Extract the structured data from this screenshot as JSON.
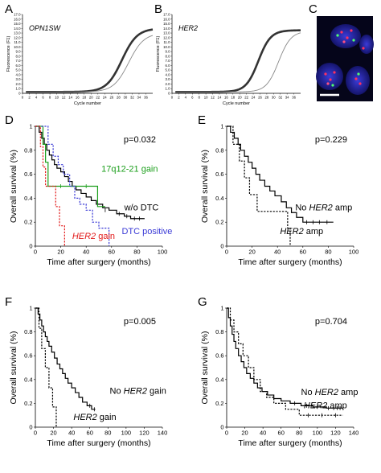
{
  "panels": {
    "A": {
      "letter": "A",
      "gene": "OPN1SW",
      "ylabel": "Fluorescence (F1)",
      "xlabel": "Cycle number",
      "yticks": [
        "0",
        "1.0",
        "2.0",
        "3.0",
        "4.0",
        "5.0",
        "6.0",
        "7.0",
        "8.0",
        "9.0",
        "10.0",
        "11.0",
        "12.0",
        "13.0",
        "14.0",
        "15.0",
        "16.0",
        "17.0"
      ],
      "xticks": [
        "0",
        "2",
        "4",
        "6",
        "8",
        "10",
        "12",
        "14",
        "16",
        "18",
        "20",
        "22",
        "24",
        "26",
        "28",
        "30",
        "32",
        "34",
        "36"
      ]
    },
    "B": {
      "letter": "B",
      "gene": "HER2",
      "ylabel": "Fluorescence (F1)",
      "xlabel": "Cycle number",
      "yticks": [
        "0",
        "1.0",
        "2.0",
        "3.0",
        "4.0",
        "5.0",
        "6.0",
        "7.0",
        "8.0",
        "9.0",
        "10.0",
        "11.0",
        "12.0",
        "13.0",
        "14.0",
        "15.0",
        "16.0",
        "17.0"
      ],
      "xticks": [
        "0",
        "2",
        "4",
        "6",
        "8",
        "10",
        "12",
        "14",
        "16",
        "18",
        "20",
        "22",
        "24",
        "26",
        "28",
        "30",
        "32",
        "34",
        "36"
      ]
    },
    "C": {
      "letter": "C"
    }
  },
  "chart_data": [
    {
      "type": "line",
      "panel": "A",
      "title": "OPN1SW",
      "xlabel": "Cycle number",
      "ylabel": "Fluorescence (F1)",
      "xlim": [
        0,
        38
      ],
      "ylim": [
        0,
        17
      ],
      "series": [
        {
          "style": "thick",
          "midpoint": 29.0,
          "slope": 0.45,
          "base": 0.3,
          "plateau": 14.0
        },
        {
          "style": "thin",
          "midpoint": 31.0,
          "slope": 0.45,
          "base": 0.3,
          "plateau": 13.0
        }
      ]
    },
    {
      "type": "line",
      "panel": "B",
      "title": "HER2",
      "xlabel": "Cycle number",
      "ylabel": "Fluorescence (F1)",
      "xlim": [
        0,
        38
      ],
      "ylim": [
        0,
        17
      ],
      "series": [
        {
          "style": "thick",
          "midpoint": 25.5,
          "slope": 0.55,
          "base": 0.3,
          "plateau": 13.6
        },
        {
          "style": "thin",
          "midpoint": 31.5,
          "slope": 0.55,
          "base": 0.3,
          "plateau": 13.4
        }
      ]
    },
    {
      "type": "line",
      "panel": "D",
      "title": "",
      "xlabel": "Time after surgery (months)",
      "ylabel": "Overall survival (%)",
      "xlim": [
        0,
        100
      ],
      "ylim": [
        0,
        1
      ],
      "xticks": [
        "0",
        "20",
        "40",
        "60",
        "80",
        "100"
      ],
      "yticks": [
        "0",
        "0.2",
        "0.4",
        "0.6",
        "0.8",
        "1"
      ],
      "pvalue": "p=0.032",
      "series": [
        {
          "name": "w/o DTC",
          "color": "#000000",
          "dash": "solid",
          "label_pos": [
            70,
            0.3
          ],
          "points": [
            [
              0,
              1
            ],
            [
              3,
              0.95
            ],
            [
              5,
              0.9
            ],
            [
              7,
              0.85
            ],
            [
              9,
              0.8
            ],
            [
              11,
              0.76
            ],
            [
              13,
              0.72
            ],
            [
              15,
              0.68
            ],
            [
              17,
              0.65
            ],
            [
              20,
              0.62
            ],
            [
              23,
              0.58
            ],
            [
              26,
              0.54
            ],
            [
              29,
              0.5
            ],
            [
              32,
              0.47
            ],
            [
              36,
              0.44
            ],
            [
              40,
              0.41
            ],
            [
              44,
              0.38
            ],
            [
              48,
              0.35
            ],
            [
              53,
              0.32
            ],
            [
              58,
              0.3
            ],
            [
              64,
              0.27
            ],
            [
              70,
              0.25
            ],
            [
              75,
              0.23
            ],
            [
              86,
              0.23
            ]
          ],
          "censored": [
            [
              55,
              0.3
            ],
            [
              66,
              0.27
            ],
            [
              72,
              0.25
            ],
            [
              78,
              0.23
            ],
            [
              82,
              0.23
            ]
          ]
        },
        {
          "name": "17q12-21 gain",
          "color": "#1a9e1a",
          "dash": "solid",
          "label_pos": [
            52,
            0.62
          ],
          "points": [
            [
              0,
              1
            ],
            [
              6,
              0.85
            ],
            [
              8,
              0.7
            ],
            [
              10,
              0.5
            ],
            [
              48,
              0.5
            ],
            [
              49,
              0.33
            ],
            [
              55,
              0.33
            ]
          ],
          "censored": [
            [
              20,
              0.5
            ],
            [
              40,
              0.5
            ]
          ]
        },
        {
          "name": "DTC positive",
          "color": "#3a3ad6",
          "dash": "dotted",
          "label_pos": [
            68,
            0.1
          ],
          "points": [
            [
              0,
              1
            ],
            [
              10,
              0.85
            ],
            [
              14,
              0.75
            ],
            [
              18,
              0.68
            ],
            [
              22,
              0.6
            ],
            [
              27,
              0.5
            ],
            [
              31,
              0.4
            ],
            [
              35,
              0.35
            ],
            [
              40,
              0.3
            ],
            [
              45,
              0.2
            ],
            [
              50,
              0.15
            ],
            [
              58,
              0.15
            ],
            [
              58,
              0
            ]
          ],
          "censored": []
        },
        {
          "name": "HER2 gain",
          "color": "#e21a1a",
          "dash": "dotted",
          "label_pos": [
            29,
            0.06
          ],
          "points": [
            [
              0,
              1
            ],
            [
              4,
              0.83
            ],
            [
              6,
              0.66
            ],
            [
              8,
              0.5
            ],
            [
              13,
              0.5
            ],
            [
              16,
              0.33
            ],
            [
              19,
              0.17
            ],
            [
              23,
              0.17
            ],
            [
              23,
              0
            ]
          ],
          "censored": []
        }
      ]
    },
    {
      "type": "line",
      "panel": "E",
      "title": "",
      "xlabel": "Time after surgery (months)",
      "ylabel": "Overall survival (%)",
      "xlim": [
        0,
        100
      ],
      "ylim": [
        0,
        1
      ],
      "xticks": [
        "0",
        "20",
        "40",
        "60",
        "80",
        "100"
      ],
      "yticks": [
        "0",
        "0.2",
        "0.4",
        "0.6",
        "0.8",
        "1"
      ],
      "pvalue": "p=0.229",
      "series": [
        {
          "name": "No HER2 amp",
          "color": "#000000",
          "dash": "solid",
          "label_pos": [
            54,
            0.3
          ],
          "points": [
            [
              0,
              1
            ],
            [
              3,
              0.95
            ],
            [
              6,
              0.9
            ],
            [
              9,
              0.85
            ],
            [
              11,
              0.8
            ],
            [
              14,
              0.75
            ],
            [
              17,
              0.7
            ],
            [
              20,
              0.65
            ],
            [
              23,
              0.6
            ],
            [
              26,
              0.55
            ],
            [
              30,
              0.5
            ],
            [
              34,
              0.46
            ],
            [
              38,
              0.42
            ],
            [
              43,
              0.37
            ],
            [
              47,
              0.32
            ],
            [
              51,
              0.28
            ],
            [
              55,
              0.24
            ],
            [
              60,
              0.2
            ],
            [
              84,
              0.2
            ]
          ],
          "censored": [
            [
              63,
              0.2
            ],
            [
              68,
              0.2
            ],
            [
              73,
              0.2
            ],
            [
              79,
              0.2
            ]
          ]
        },
        {
          "name": "HER2 amp",
          "color": "#000000",
          "dash": "dotted",
          "label_pos": [
            42,
            0.1
          ],
          "points": [
            [
              0,
              1
            ],
            [
              5,
              0.85
            ],
            [
              10,
              0.71
            ],
            [
              14,
              0.57
            ],
            [
              18,
              0.43
            ],
            [
              24,
              0.29
            ],
            [
              45,
              0.29
            ],
            [
              48,
              0.15
            ],
            [
              50,
              0.15
            ],
            [
              50,
              0
            ]
          ],
          "censored": []
        }
      ]
    },
    {
      "type": "line",
      "panel": "F",
      "title": "",
      "xlabel": "Time after surgery (months)",
      "ylabel": "Overall survival (%)",
      "xlim": [
        0,
        140
      ],
      "ylim": [
        0,
        1
      ],
      "xticks": [
        "0",
        "20",
        "40",
        "60",
        "80",
        "100",
        "120",
        "140"
      ],
      "yticks": [
        "0",
        "0.2",
        "0.4",
        "0.6",
        "0.8",
        "1"
      ],
      "pvalue": "p=0.005",
      "series": [
        {
          "name": "No HER2 gain",
          "color": "#000000",
          "dash": "solid",
          "label_pos": [
            82,
            0.28
          ],
          "points": [
            [
              0,
              1
            ],
            [
              3,
              0.95
            ],
            [
              5,
              0.9
            ],
            [
              7,
              0.85
            ],
            [
              9,
              0.8
            ],
            [
              11,
              0.76
            ],
            [
              13,
              0.72
            ],
            [
              15,
              0.68
            ],
            [
              18,
              0.63
            ],
            [
              21,
              0.58
            ],
            [
              24,
              0.53
            ],
            [
              27,
              0.49
            ],
            [
              30,
              0.45
            ],
            [
              33,
              0.41
            ],
            [
              36,
              0.37
            ],
            [
              40,
              0.33
            ],
            [
              44,
              0.29
            ],
            [
              48,
              0.25
            ],
            [
              52,
              0.21
            ],
            [
              57,
              0.18
            ],
            [
              62,
              0.15
            ],
            [
              66,
              0.15
            ]
          ],
          "censored": [
            [
              60,
              0.18
            ],
            [
              65,
              0.15
            ]
          ]
        },
        {
          "name": "HER2 gain",
          "color": "#000000",
          "dash": "dotted",
          "label_pos": [
            42,
            0.06
          ],
          "points": [
            [
              0,
              1
            ],
            [
              4,
              0.83
            ],
            [
              7,
              0.66
            ],
            [
              11,
              0.5
            ],
            [
              15,
              0.33
            ],
            [
              19,
              0.17
            ],
            [
              23,
              0.17
            ],
            [
              23,
              0
            ]
          ],
          "censored": []
        }
      ]
    },
    {
      "type": "line",
      "panel": "G",
      "title": "",
      "xlabel": "Time after surgery (months)",
      "ylabel": "Overall survival (%)",
      "xlim": [
        0,
        140
      ],
      "ylim": [
        0,
        1
      ],
      "xticks": [
        "0",
        "20",
        "40",
        "60",
        "80",
        "100",
        "120",
        "140"
      ],
      "yticks": [
        "0",
        "0.2",
        "0.4",
        "0.6",
        "0.8",
        "1"
      ],
      "pvalue": "p=0.704",
      "series": [
        {
          "name": "No HER2 amp",
          "color": "#000000",
          "dash": "solid",
          "label_pos": [
            82,
            0.27
          ],
          "points": [
            [
              0,
              1
            ],
            [
              2,
              0.92
            ],
            [
              4,
              0.85
            ],
            [
              6,
              0.78
            ],
            [
              8,
              0.72
            ],
            [
              10,
              0.66
            ],
            [
              13,
              0.6
            ],
            [
              16,
              0.55
            ],
            [
              19,
              0.5
            ],
            [
              22,
              0.45
            ],
            [
              26,
              0.41
            ],
            [
              30,
              0.37
            ],
            [
              34,
              0.33
            ],
            [
              39,
              0.3
            ],
            [
              45,
              0.27
            ],
            [
              52,
              0.24
            ],
            [
              60,
              0.22
            ],
            [
              70,
              0.2
            ],
            [
              82,
              0.18
            ],
            [
              95,
              0.17
            ],
            [
              110,
              0.16
            ],
            [
              128,
              0.16
            ]
          ],
          "censored": [
            [
              75,
              0.2
            ],
            [
              88,
              0.18
            ],
            [
              100,
              0.17
            ],
            [
              112,
              0.16
            ],
            [
              118,
              0.16
            ],
            [
              122,
              0.16
            ],
            [
              125,
              0.16
            ]
          ]
        },
        {
          "name": "HER2 amp",
          "color": "#000000",
          "dash": "dotted",
          "label_pos": [
            85,
            0.16
          ],
          "points": [
            [
              0,
              1
            ],
            [
              4,
              0.9
            ],
            [
              8,
              0.8
            ],
            [
              13,
              0.7
            ],
            [
              18,
              0.6
            ],
            [
              24,
              0.5
            ],
            [
              30,
              0.4
            ],
            [
              37,
              0.3
            ],
            [
              44,
              0.25
            ],
            [
              52,
              0.2
            ],
            [
              65,
              0.15
            ],
            [
              80,
              0.1
            ],
            [
              128,
              0.1
            ]
          ],
          "censored": [
            [
              90,
              0.1
            ],
            [
              105,
              0.1
            ],
            [
              120,
              0.1
            ]
          ]
        }
      ]
    }
  ]
}
